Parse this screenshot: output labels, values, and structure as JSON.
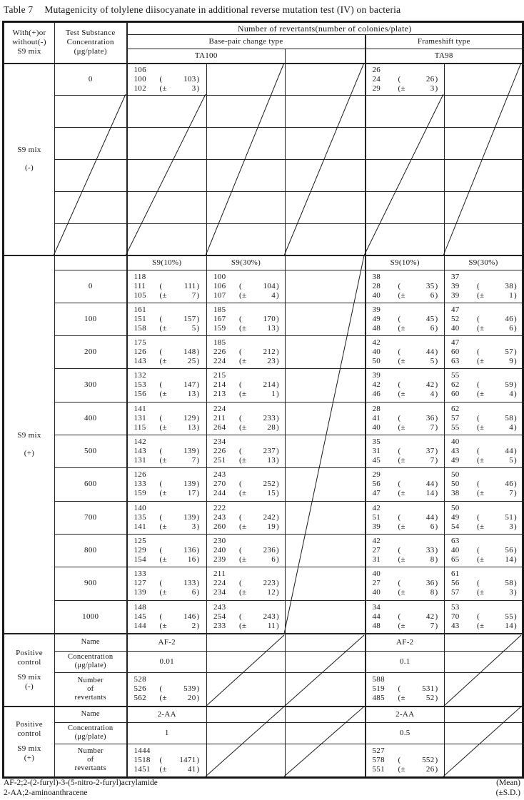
{
  "title": {
    "label": "Table 7",
    "text": "Mutagenicity of tolylene diisocyanate in additional reverse mutation test (IV) on bacteria"
  },
  "header": {
    "s9_col": [
      "With(+)or",
      "without(-)",
      "S9 mix"
    ],
    "conc_col": [
      "Test Substance",
      "Concentration",
      "(μg/plate)"
    ],
    "revertants": "Number of revertants(number of colonies/plate)",
    "base_pair": "Base-pair change type",
    "frameshift": "Frameshift type",
    "ta100": "TA100",
    "ta98": "TA98",
    "s9_10": "S9(10%)",
    "s9_30": "S9(30%)"
  },
  "s9_minus": {
    "label": [
      "S9 mix",
      "(-)"
    ],
    "row": {
      "conc": "0",
      "ta100": {
        "c": [
          "106",
          "100",
          "102"
        ],
        "m": "103",
        "s": "3"
      },
      "ta98": {
        "c": [
          "26",
          "24",
          "29"
        ],
        "m": "26",
        "s": "3"
      }
    },
    "empty_row_count": 5
  },
  "s9_plus": {
    "label": [
      "S9 mix",
      "(+)"
    ],
    "rows": [
      {
        "conc": "0",
        "a": {
          "c": [
            "118",
            "111",
            "105"
          ],
          "m": "111",
          "s": "7"
        },
        "b": {
          "c": [
            "100",
            "106",
            "107"
          ],
          "m": "104",
          "s": "4"
        },
        "cc": {
          "c": [
            "38",
            "28",
            "40"
          ],
          "m": "35",
          "s": "6"
        },
        "d": {
          "c": [
            "37",
            "39",
            "39"
          ],
          "m": "38",
          "s": "1"
        }
      },
      {
        "conc": "100",
        "a": {
          "c": [
            "161",
            "151",
            "158"
          ],
          "m": "157",
          "s": "5"
        },
        "b": {
          "c": [
            "185",
            "167",
            "159"
          ],
          "m": "170",
          "s": "13"
        },
        "cc": {
          "c": [
            "39",
            "49",
            "48"
          ],
          "m": "45",
          "s": "6"
        },
        "d": {
          "c": [
            "47",
            "52",
            "40"
          ],
          "m": "46",
          "s": "6"
        }
      },
      {
        "conc": "200",
        "a": {
          "c": [
            "175",
            "126",
            "143"
          ],
          "m": "148",
          "s": "25"
        },
        "b": {
          "c": [
            "185",
            "226",
            "224"
          ],
          "m": "212",
          "s": "23"
        },
        "cc": {
          "c": [
            "42",
            "40",
            "50"
          ],
          "m": "44",
          "s": "5"
        },
        "d": {
          "c": [
            "47",
            "60",
            "63"
          ],
          "m": "57",
          "s": "9"
        }
      },
      {
        "conc": "300",
        "a": {
          "c": [
            "132",
            "153",
            "156"
          ],
          "m": "147",
          "s": "13"
        },
        "b": {
          "c": [
            "215",
            "214",
            "213"
          ],
          "m": "214",
          "s": "1"
        },
        "cc": {
          "c": [
            "39",
            "42",
            "46"
          ],
          "m": "42",
          "s": "4"
        },
        "d": {
          "c": [
            "55",
            "62",
            "60"
          ],
          "m": "59",
          "s": "4"
        }
      },
      {
        "conc": "400",
        "a": {
          "c": [
            "141",
            "131",
            "115"
          ],
          "m": "129",
          "s": "13"
        },
        "b": {
          "c": [
            "224",
            "211",
            "264"
          ],
          "m": "233",
          "s": "28"
        },
        "cc": {
          "c": [
            "28",
            "41",
            "40"
          ],
          "m": "36",
          "s": "7"
        },
        "d": {
          "c": [
            "62",
            "57",
            "55"
          ],
          "m": "58",
          "s": "4"
        }
      },
      {
        "conc": "500",
        "a": {
          "c": [
            "142",
            "143",
            "131"
          ],
          "m": "139",
          "s": "7"
        },
        "b": {
          "c": [
            "234",
            "226",
            "251"
          ],
          "m": "237",
          "s": "13"
        },
        "cc": {
          "c": [
            "35",
            "31",
            "45"
          ],
          "m": "37",
          "s": "7"
        },
        "d": {
          "c": [
            "40",
            "43",
            "49"
          ],
          "m": "44",
          "s": "5"
        }
      },
      {
        "conc": "600",
        "a": {
          "c": [
            "126",
            "133",
            "159"
          ],
          "m": "139",
          "s": "17"
        },
        "b": {
          "c": [
            "243",
            "270",
            "244"
          ],
          "m": "252",
          "s": "15"
        },
        "cc": {
          "c": [
            "29",
            "56",
            "47"
          ],
          "m": "44",
          "s": "14"
        },
        "d": {
          "c": [
            "50",
            "50",
            "38"
          ],
          "m": "46",
          "s": "7"
        }
      },
      {
        "conc": "700",
        "a": {
          "c": [
            "140",
            "135",
            "141"
          ],
          "m": "139",
          "s": "3"
        },
        "b": {
          "c": [
            "222",
            "243",
            "260"
          ],
          "m": "242",
          "s": "19"
        },
        "cc": {
          "c": [
            "42",
            "51",
            "39"
          ],
          "m": "44",
          "s": "6"
        },
        "d": {
          "c": [
            "50",
            "49",
            "54"
          ],
          "m": "51",
          "s": "3"
        }
      },
      {
        "conc": "800",
        "a": {
          "c": [
            "125",
            "129",
            "154"
          ],
          "m": "136",
          "s": "16"
        },
        "b": {
          "c": [
            "230",
            "240",
            "239"
          ],
          "m": "236",
          "s": "6"
        },
        "cc": {
          "c": [
            "42",
            "27",
            "31"
          ],
          "m": "33",
          "s": "8"
        },
        "d": {
          "c": [
            "63",
            "40",
            "65"
          ],
          "m": "56",
          "s": "14"
        }
      },
      {
        "conc": "900",
        "a": {
          "c": [
            "133",
            "127",
            "139"
          ],
          "m": "133",
          "s": "6"
        },
        "b": {
          "c": [
            "211",
            "224",
            "234"
          ],
          "m": "223",
          "s": "12"
        },
        "cc": {
          "c": [
            "40",
            "27",
            "40"
          ],
          "m": "36",
          "s": "8"
        },
        "d": {
          "c": [
            "61",
            "56",
            "57"
          ],
          "m": "58",
          "s": "3"
        }
      },
      {
        "conc": "1000",
        "a": {
          "c": [
            "148",
            "145",
            "144"
          ],
          "m": "146",
          "s": "2"
        },
        "b": {
          "c": [
            "243",
            "254",
            "233"
          ],
          "m": "243",
          "s": "11"
        },
        "cc": {
          "c": [
            "34",
            "44",
            "48"
          ],
          "m": "42",
          "s": "7"
        },
        "d": {
          "c": [
            "53",
            "70",
            "43"
          ],
          "m": "55",
          "s": "14"
        }
      }
    ]
  },
  "positive_controls": [
    {
      "label": [
        "Positive",
        "control",
        "S9 mix",
        "(-)"
      ],
      "row_names": {
        "name": "Name",
        "conc": [
          "Concentration",
          "(μg/plate)"
        ],
        "num": [
          "Number",
          "of",
          "revertants"
        ]
      },
      "base_pair": {
        "name": "AF-2",
        "conc": "0.01",
        "numbers": {
          "c": [
            "528",
            "526",
            "562"
          ],
          "m": "539",
          "s": "20"
        }
      },
      "frameshift": {
        "name": "AF-2",
        "conc": "0.1",
        "numbers": {
          "c": [
            "588",
            "519",
            "485"
          ],
          "m": "531",
          "s": "52"
        }
      }
    },
    {
      "label": [
        "Positive",
        "control",
        "S9 mix",
        "(+)"
      ],
      "row_names": {
        "name": "Name",
        "conc": [
          "Concentration",
          "(μg/plate)"
        ],
        "num": [
          "Number",
          "of",
          "revertants"
        ]
      },
      "base_pair": {
        "name": "2-AA",
        "conc": "1",
        "numbers": {
          "c": [
            "1444",
            "1518",
            "1451"
          ],
          "m": "1471",
          "s": "41"
        }
      },
      "frameshift": {
        "name": "2-AA",
        "conc": "0.5",
        "numbers": {
          "c": [
            "527",
            "578",
            "551"
          ],
          "m": "552",
          "s": "26"
        }
      }
    }
  ],
  "footnotes": {
    "left": [
      "AF-2;2-(2-furyl)-3-(5-nitro-2-furyl)acrylamide",
      "2-AA;2-aminoanthracene"
    ],
    "right": [
      "(Mean)",
      "(±S.D.)"
    ]
  }
}
